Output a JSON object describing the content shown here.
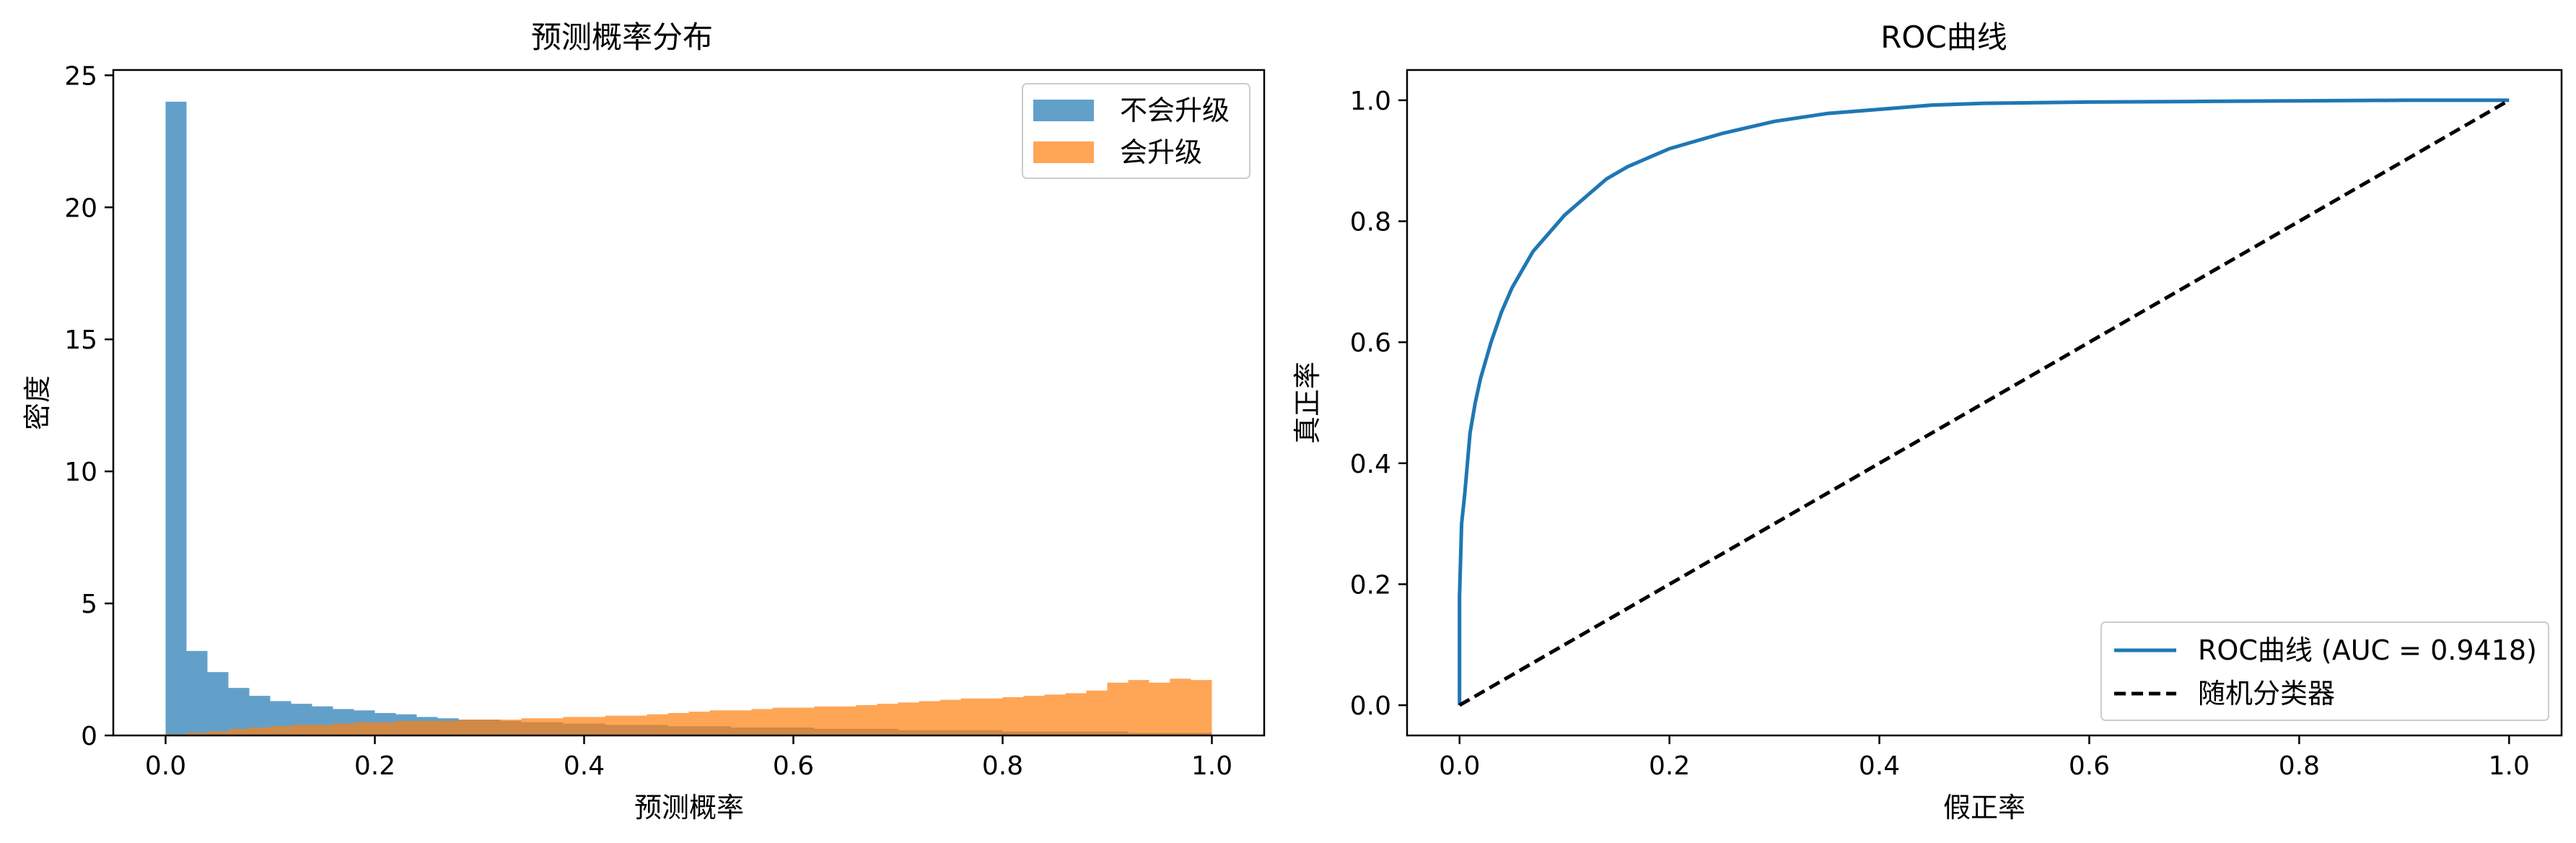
{
  "chart_data": [
    {
      "type": "bar",
      "subtype": "histogram",
      "title": "预测概率分布",
      "xlabel": "预测概率",
      "ylabel": "密度",
      "xlim": [
        -0.05,
        1.05
      ],
      "ylim": [
        0,
        25.2
      ],
      "xticks": [
        "0.0",
        "0.2",
        "0.4",
        "0.6",
        "0.8",
        "1.0"
      ],
      "yticks": [
        "0",
        "5",
        "10",
        "15",
        "20",
        "25"
      ],
      "grid": false,
      "legend_position": "top-right",
      "bin_width": 0.02,
      "bin_starts": [
        0.0,
        0.02,
        0.04,
        0.06,
        0.08,
        0.1,
        0.12,
        0.14,
        0.16,
        0.18,
        0.2,
        0.22,
        0.24,
        0.26,
        0.28,
        0.3,
        0.32,
        0.34,
        0.36,
        0.38,
        0.4,
        0.42,
        0.44,
        0.46,
        0.48,
        0.5,
        0.52,
        0.54,
        0.56,
        0.58,
        0.6,
        0.62,
        0.64,
        0.66,
        0.68,
        0.7,
        0.72,
        0.74,
        0.76,
        0.78,
        0.8,
        0.82,
        0.84,
        0.86,
        0.88,
        0.9,
        0.92,
        0.94,
        0.96,
        0.98
      ],
      "series": [
        {
          "name": "不会升级",
          "color": "#1f77b4",
          "opacity": 0.7,
          "values": [
            24.0,
            3.2,
            2.4,
            1.8,
            1.5,
            1.3,
            1.2,
            1.1,
            1.0,
            0.95,
            0.85,
            0.8,
            0.7,
            0.65,
            0.6,
            0.6,
            0.55,
            0.5,
            0.5,
            0.45,
            0.45,
            0.4,
            0.4,
            0.4,
            0.35,
            0.35,
            0.35,
            0.3,
            0.3,
            0.3,
            0.3,
            0.25,
            0.25,
            0.25,
            0.25,
            0.2,
            0.2,
            0.2,
            0.2,
            0.2,
            0.15,
            0.15,
            0.15,
            0.15,
            0.15,
            0.15,
            0.1,
            0.1,
            0.1,
            0.1
          ]
        },
        {
          "name": "会升级",
          "color": "#ff7f0e",
          "opacity": 0.7,
          "values": [
            0.05,
            0.1,
            0.15,
            0.25,
            0.3,
            0.35,
            0.4,
            0.4,
            0.45,
            0.5,
            0.5,
            0.55,
            0.55,
            0.55,
            0.6,
            0.6,
            0.6,
            0.65,
            0.65,
            0.7,
            0.7,
            0.75,
            0.75,
            0.8,
            0.85,
            0.9,
            0.95,
            0.95,
            1.0,
            1.05,
            1.05,
            1.1,
            1.1,
            1.15,
            1.2,
            1.25,
            1.3,
            1.35,
            1.4,
            1.4,
            1.45,
            1.5,
            1.55,
            1.6,
            1.7,
            2.0,
            2.1,
            2.0,
            2.15,
            2.1
          ]
        }
      ]
    },
    {
      "type": "line",
      "title": "ROC曲线",
      "xlabel": "假正率",
      "ylabel": "真正率",
      "xlim": [
        -0.05,
        1.05
      ],
      "ylim": [
        -0.05,
        1.05
      ],
      "xticks": [
        "0.0",
        "0.2",
        "0.4",
        "0.6",
        "0.8",
        "1.0"
      ],
      "yticks": [
        "0.0",
        "0.2",
        "0.4",
        "0.6",
        "0.8",
        "1.0"
      ],
      "grid": false,
      "legend_position": "bottom-right",
      "series": [
        {
          "name": "ROC曲线 (AUC = 0.9418)",
          "color": "#1f77b4",
          "style": "solid",
          "x": [
            0.0,
            0.0,
            0.002,
            0.005,
            0.01,
            0.015,
            0.02,
            0.03,
            0.04,
            0.05,
            0.06,
            0.07,
            0.08,
            0.1,
            0.12,
            0.14,
            0.16,
            0.18,
            0.2,
            0.25,
            0.3,
            0.35,
            0.4,
            0.45,
            0.5,
            0.6,
            0.7,
            0.8,
            0.9,
            1.0
          ],
          "y": [
            0.0,
            0.18,
            0.3,
            0.35,
            0.45,
            0.5,
            0.54,
            0.6,
            0.65,
            0.69,
            0.72,
            0.75,
            0.77,
            0.81,
            0.84,
            0.87,
            0.89,
            0.905,
            0.92,
            0.945,
            0.965,
            0.978,
            0.985,
            0.992,
            0.995,
            0.997,
            0.998,
            0.999,
            1.0,
            1.0
          ]
        },
        {
          "name": "随机分类器",
          "color": "#000000",
          "style": "dashed",
          "x": [
            0.0,
            1.0
          ],
          "y": [
            0.0,
            1.0
          ]
        }
      ]
    }
  ]
}
